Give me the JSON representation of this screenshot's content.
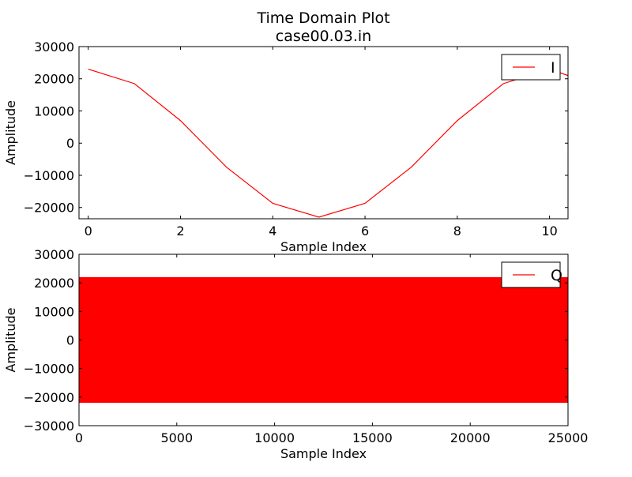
{
  "figure": {
    "title_line1": "Time Domain Plot",
    "title_line2": "case00.03.in"
  },
  "chart_data": [
    {
      "type": "line",
      "name": "top",
      "xlabel": "Sample Index",
      "ylabel": "Amplitude",
      "xlim": [
        -0.2,
        10.4
      ],
      "ylim": [
        -23500,
        30000
      ],
      "xticks": [
        0,
        2,
        4,
        6,
        8,
        10
      ],
      "xtick_labels": [
        "0",
        "2",
        "4",
        "6",
        "8",
        "10"
      ],
      "yticks": [
        -20000,
        -10000,
        0,
        10000,
        20000,
        30000
      ],
      "ytick_labels": [
        "−20000",
        "−10000",
        "0",
        "10000",
        "20000",
        "30000"
      ],
      "legend_position": "top-right",
      "grid": false,
      "series": [
        {
          "name": "I",
          "color": "#ff0000",
          "x": [
            0,
            1,
            2,
            3,
            4,
            5,
            6,
            7,
            8,
            9,
            10,
            10.4
          ],
          "y": [
            23000,
            18500,
            7000,
            -7500,
            -18700,
            -23000,
            -18700,
            -7500,
            7000,
            18500,
            23000,
            21000
          ]
        }
      ]
    },
    {
      "type": "area",
      "name": "bottom",
      "xlabel": "Sample Index",
      "ylabel": "Amplitude",
      "xlim": [
        0,
        25000
      ],
      "ylim": [
        -30000,
        30000
      ],
      "xticks": [
        0,
        5000,
        10000,
        15000,
        20000,
        25000
      ],
      "xtick_labels": [
        "0",
        "5000",
        "10000",
        "15000",
        "20000",
        "25000"
      ],
      "yticks": [
        -30000,
        -20000,
        -10000,
        0,
        10000,
        20000,
        30000
      ],
      "ytick_labels": [
        "−30000",
        "−20000",
        "−10000",
        "0",
        "10000",
        "20000",
        "30000"
      ],
      "legend_position": "top-right",
      "grid": false,
      "series": [
        {
          "name": "Q",
          "color": "#ff0000",
          "x_range": [
            0,
            25000
          ],
          "y_max": 22000,
          "y_min": -22000
        }
      ]
    }
  ]
}
